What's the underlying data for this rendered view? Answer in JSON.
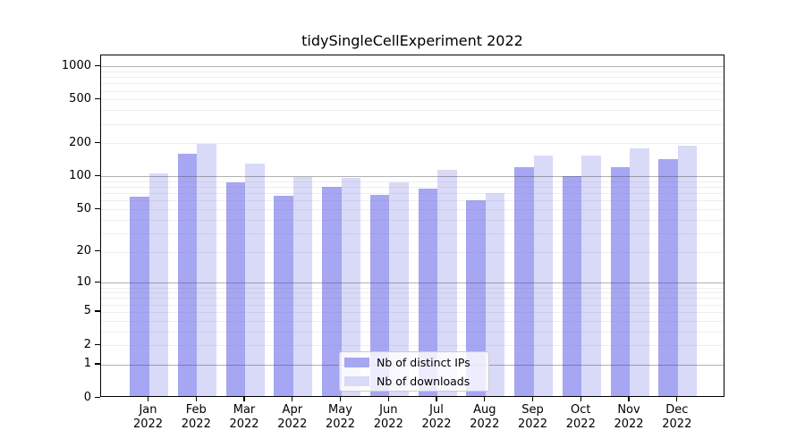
{
  "chart_data": {
    "type": "bar",
    "title": "tidySingleCellExperiment 2022",
    "x_months": [
      "Jan",
      "Feb",
      "Mar",
      "Apr",
      "May",
      "Jun",
      "Jul",
      "Aug",
      "Sep",
      "Oct",
      "Nov",
      "Dec"
    ],
    "x_year": "2022",
    "categories": [
      "Jan 2022",
      "Feb 2022",
      "Mar 2022",
      "Apr 2022",
      "May 2022",
      "Jun 2022",
      "Jul 2022",
      "Aug 2022",
      "Sep 2022",
      "Oct 2022",
      "Nov 2022",
      "Dec 2022"
    ],
    "series": [
      {
        "name": "Nb of distinct IPs",
        "color": "#a6a6f2",
        "values": [
          64,
          160,
          87,
          66,
          80,
          67,
          77,
          60,
          119,
          99,
          119,
          141
        ]
      },
      {
        "name": "Nb of downloads",
        "color": "#d9d9f8",
        "values": [
          105,
          195,
          130,
          97,
          95,
          88,
          114,
          70,
          153,
          153,
          177,
          187
        ]
      }
    ],
    "xlabel": "",
    "ylabel": "",
    "yscale": "log1p",
    "ylim": [
      0,
      1258
    ],
    "yticks": [
      0,
      1,
      2,
      5,
      10,
      20,
      50,
      100,
      200,
      500,
      1000
    ],
    "major_grid_values": [
      1,
      10,
      100,
      1000
    ],
    "minor_grid_values": [
      2,
      3,
      4,
      5,
      6,
      7,
      8,
      9,
      20,
      30,
      40,
      50,
      60,
      70,
      80,
      90,
      200,
      300,
      400,
      500,
      600,
      700,
      800,
      900
    ],
    "grid": true,
    "legend_position": "lower center"
  },
  "colors": {
    "bar_ips": "#a6a6f2",
    "bar_downloads": "#d9d9f8",
    "axis_border": "#000000",
    "background": "#ffffff"
  }
}
